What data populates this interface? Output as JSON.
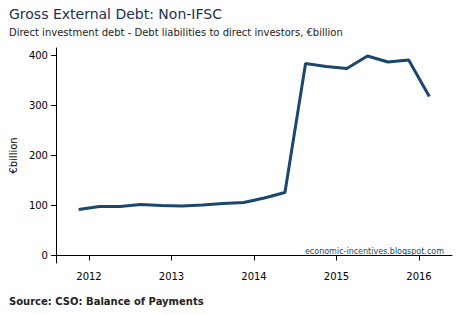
{
  "chart_data": {
    "type": "line",
    "title": "Gross External Debt: Non-IFSC",
    "subtitle": "Direct investment debt - Debt liabilities to direct investors, €billion",
    "y_label": "€billion",
    "note": "economic-incentives.blogspot.com",
    "source": "Source: CSO: Balance of Payments",
    "x": [
      2011.875,
      2012.125,
      2012.375,
      2012.625,
      2012.875,
      2013.125,
      2013.375,
      2013.625,
      2013.875,
      2014.125,
      2014.375,
      2014.625,
      2014.875,
      2015.125,
      2015.375,
      2015.625,
      2015.875,
      2016.125
    ],
    "values": [
      92,
      98,
      98,
      102,
      100,
      99,
      101,
      104,
      106,
      115,
      126,
      384,
      378,
      374,
      399,
      387,
      391,
      318
    ],
    "color": "#1a476f",
    "xlim": [
      2011.6,
      2016.4
    ],
    "xticks": [
      2012,
      2013,
      2014,
      2015,
      2016
    ],
    "ylim": [
      -15,
      415
    ],
    "yticks": [
      0,
      100,
      200,
      300,
      400
    ],
    "grid": false
  }
}
